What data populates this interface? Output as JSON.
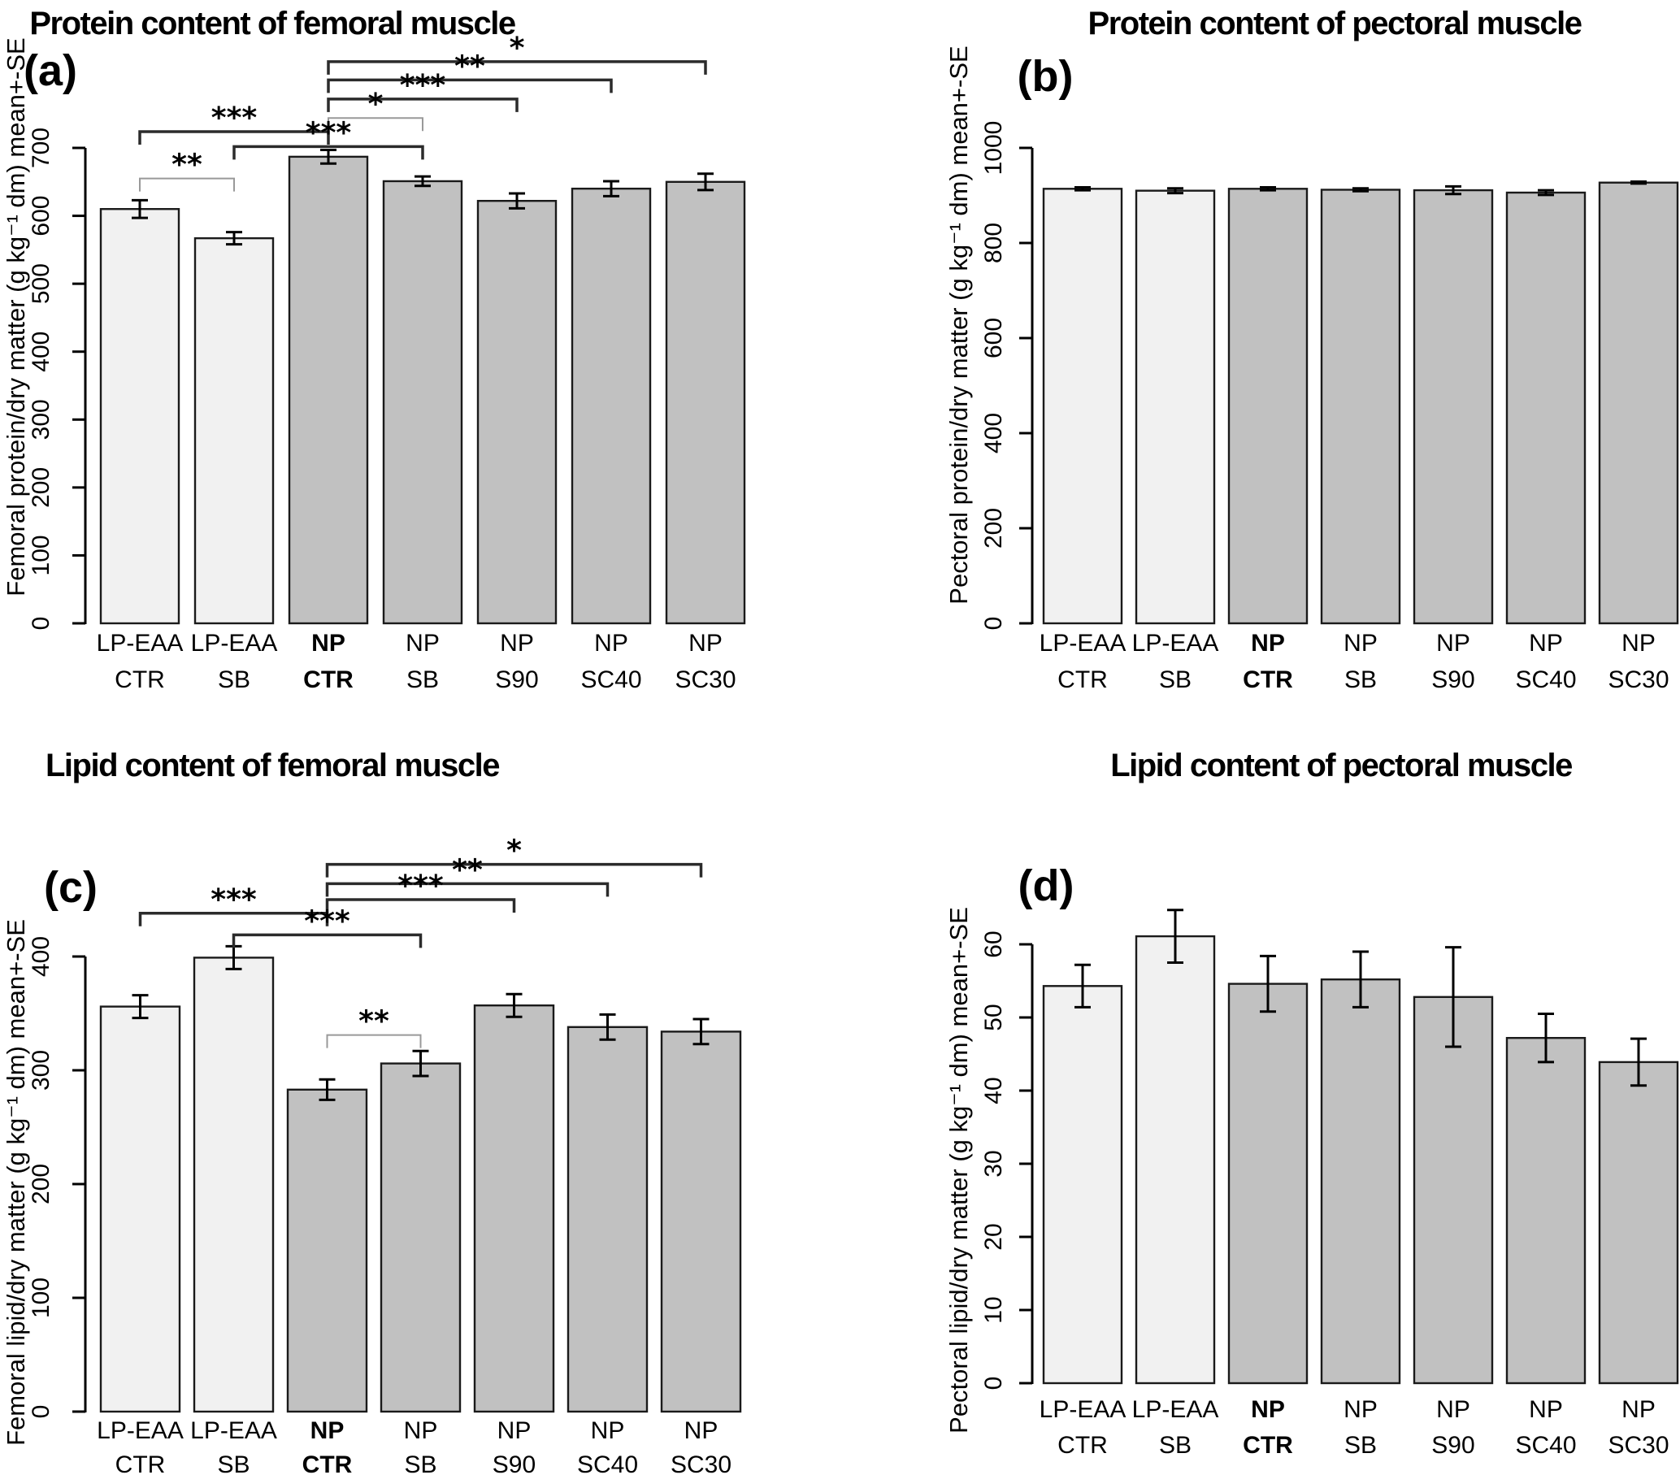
{
  "figure": {
    "background": "#ffffff",
    "description": "Four-panel bar chart figure of protein and lipid content in femoral and pectoral muscle"
  },
  "colors": {
    "light_bar_fill": "#f1f1f1",
    "dark_bar_fill": "#c1c1c1",
    "bar_stroke": "#1a1a1a",
    "axis": "#000000",
    "error_bar": "#000000",
    "bracket_dark": "#2b2b2b",
    "bracket_light": "#999999",
    "text": "#000000"
  },
  "categories": [
    {
      "line1": "LP-EAA",
      "line2": "CTR",
      "bold": false
    },
    {
      "line1": "LP-EAA",
      "line2": "SB",
      "bold": false
    },
    {
      "line1": "NP",
      "line2": "CTR",
      "bold": true
    },
    {
      "line1": "NP",
      "line2": "SB",
      "bold": false
    },
    {
      "line1": "NP",
      "line2": "S90",
      "bold": false
    },
    {
      "line1": "NP",
      "line2": "SC40",
      "bold": false
    },
    {
      "line1": "NP",
      "line2": "SC30",
      "bold": false
    }
  ],
  "chart_data": [
    {
      "id": "a",
      "type": "bar",
      "panel_label": "(a)",
      "title": "Protein content of femoral muscle",
      "ylabel": "Femoral protein/dry matter (g kg⁻¹ dm) mean+-SE",
      "xlabel": "",
      "ylim": [
        0,
        700
      ],
      "yticks": [
        0,
        100,
        200,
        300,
        400,
        500,
        600,
        700
      ],
      "grid": false,
      "categories": [
        "LP-EAA CTR",
        "LP-EAA SB",
        "NP CTR",
        "NP SB",
        "NP S90",
        "NP SC40",
        "NP SC30"
      ],
      "values": [
        610,
        567,
        687,
        651,
        622,
        640,
        650
      ],
      "errors": [
        13,
        9,
        10,
        7,
        11,
        11,
        12
      ],
      "significance_brackets": [
        {
          "from_index": 2,
          "to_index": 6,
          "stars": "*",
          "level": 827,
          "style": "dark"
        },
        {
          "from_index": 2,
          "to_index": 5,
          "stars": "**",
          "level": 800,
          "style": "dark"
        },
        {
          "from_index": 2,
          "to_index": 4,
          "stars": "***",
          "level": 772,
          "style": "dark"
        },
        {
          "from_index": 2,
          "to_index": 3,
          "stars": "*",
          "level": 744,
          "style": "light"
        },
        {
          "from_index": 0,
          "to_index": 2,
          "stars": "***",
          "level": 724,
          "style": "dark"
        },
        {
          "from_index": 1,
          "to_index": 3,
          "stars": "***",
          "level": 702,
          "style": "dark"
        },
        {
          "from_index": 0,
          "to_index": 1,
          "stars": "**",
          "level": 655,
          "style": "light"
        }
      ]
    },
    {
      "id": "b",
      "type": "bar",
      "panel_label": "(b)",
      "title": "Protein content of pectoral muscle",
      "ylabel": "Pectoral protein/dry matter (g kg⁻¹ dm) mean+-SE",
      "xlabel": "",
      "ylim": [
        0,
        1000
      ],
      "yticks": [
        0,
        200,
        400,
        600,
        800,
        1000
      ],
      "grid": false,
      "categories": [
        "LP-EAA CTR",
        "LP-EAA SB",
        "NP CTR",
        "NP SB",
        "NP S90",
        "NP SC40",
        "NP SC30"
      ],
      "values": [
        914,
        910,
        914,
        912,
        911,
        906,
        927
      ],
      "errors": [
        3,
        5,
        3,
        3,
        8,
        5,
        2
      ],
      "significance_brackets": []
    },
    {
      "id": "c",
      "type": "bar",
      "panel_label": "(c)",
      "title": "Lipid content of femoral muscle",
      "ylabel": "Femoral lipid/dry matter (g kg⁻¹ dm) mean+-SE",
      "xlabel": "",
      "ylim": [
        0,
        400
      ],
      "yticks": [
        0,
        100,
        200,
        300,
        400
      ],
      "grid": false,
      "categories": [
        "LP-EAA CTR",
        "LP-EAA SB",
        "NP CTR",
        "NP SB",
        "NP S90",
        "NP SC40",
        "NP SC30"
      ],
      "values": [
        356,
        399,
        283,
        306,
        357,
        338,
        334
      ],
      "errors": [
        10,
        10,
        9,
        11,
        10,
        11,
        11
      ],
      "significance_brackets": [
        {
          "from_index": 2,
          "to_index": 6,
          "stars": "*",
          "level": 481,
          "style": "dark"
        },
        {
          "from_index": 2,
          "to_index": 5,
          "stars": "**",
          "level": 464,
          "style": "dark"
        },
        {
          "from_index": 2,
          "to_index": 4,
          "stars": "***",
          "level": 450,
          "style": "dark"
        },
        {
          "from_index": 0,
          "to_index": 2,
          "stars": "***",
          "level": 438,
          "style": "dark"
        },
        {
          "from_index": 1,
          "to_index": 3,
          "stars": "***",
          "level": 419,
          "style": "dark"
        },
        {
          "from_index": 2,
          "to_index": 3,
          "stars": "**",
          "level": 331,
          "style": "light"
        }
      ]
    },
    {
      "id": "d",
      "type": "bar",
      "panel_label": "(d)",
      "title": "Lipid content of pectoral muscle",
      "ylabel": "Pectoral lipid/dry matter (g kg⁻¹ dm) mean+-SE",
      "xlabel": "",
      "ylim": [
        0,
        60
      ],
      "yticks": [
        0,
        10,
        20,
        30,
        40,
        50,
        60
      ],
      "grid": false,
      "categories": [
        "LP-EAA CTR",
        "LP-EAA SB",
        "NP CTR",
        "NP SB",
        "NP S90",
        "NP SC40",
        "NP SC30"
      ],
      "values": [
        54.3,
        61.1,
        54.6,
        55.2,
        52.8,
        47.2,
        43.9
      ],
      "errors": [
        2.9,
        3.6,
        3.8,
        3.8,
        6.8,
        3.3,
        3.2
      ],
      "significance_brackets": []
    }
  ]
}
